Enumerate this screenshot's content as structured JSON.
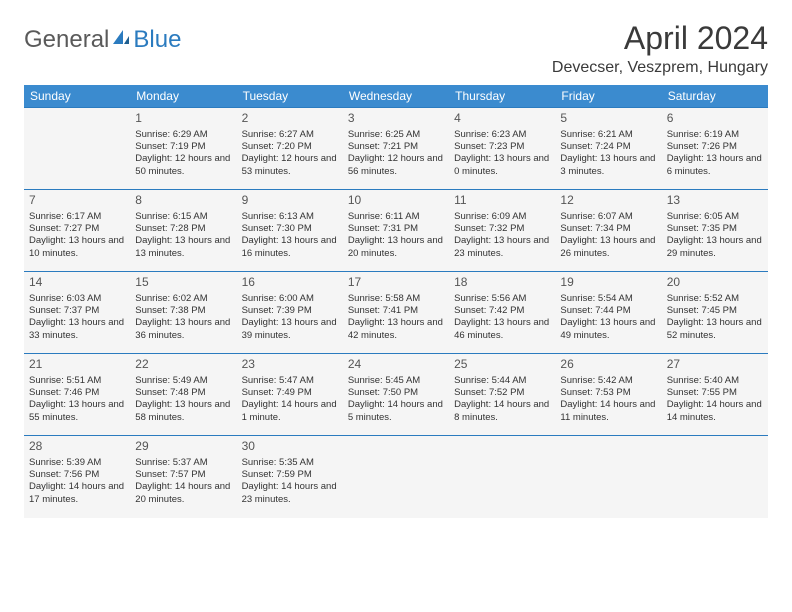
{
  "header": {
    "logo_general": "General",
    "logo_blue": "Blue",
    "month_title": "April 2024",
    "location": "Devecser, Veszprem, Hungary"
  },
  "colors": {
    "header_bg": "#3b8bcf",
    "header_text": "#ffffff",
    "cell_border": "#2b7bbf",
    "cell_bg": "#f5f5f5",
    "text": "#333333",
    "logo_gray": "#5a5a5a",
    "logo_blue": "#2b7bbf"
  },
  "weekdays": [
    "Sunday",
    "Monday",
    "Tuesday",
    "Wednesday",
    "Thursday",
    "Friday",
    "Saturday"
  ],
  "weeks": [
    [
      null,
      {
        "n": "1",
        "sr": "Sunrise: 6:29 AM",
        "ss": "Sunset: 7:19 PM",
        "dl": "Daylight: 12 hours and 50 minutes."
      },
      {
        "n": "2",
        "sr": "Sunrise: 6:27 AM",
        "ss": "Sunset: 7:20 PM",
        "dl": "Daylight: 12 hours and 53 minutes."
      },
      {
        "n": "3",
        "sr": "Sunrise: 6:25 AM",
        "ss": "Sunset: 7:21 PM",
        "dl": "Daylight: 12 hours and 56 minutes."
      },
      {
        "n": "4",
        "sr": "Sunrise: 6:23 AM",
        "ss": "Sunset: 7:23 PM",
        "dl": "Daylight: 13 hours and 0 minutes."
      },
      {
        "n": "5",
        "sr": "Sunrise: 6:21 AM",
        "ss": "Sunset: 7:24 PM",
        "dl": "Daylight: 13 hours and 3 minutes."
      },
      {
        "n": "6",
        "sr": "Sunrise: 6:19 AM",
        "ss": "Sunset: 7:26 PM",
        "dl": "Daylight: 13 hours and 6 minutes."
      }
    ],
    [
      {
        "n": "7",
        "sr": "Sunrise: 6:17 AM",
        "ss": "Sunset: 7:27 PM",
        "dl": "Daylight: 13 hours and 10 minutes."
      },
      {
        "n": "8",
        "sr": "Sunrise: 6:15 AM",
        "ss": "Sunset: 7:28 PM",
        "dl": "Daylight: 13 hours and 13 minutes."
      },
      {
        "n": "9",
        "sr": "Sunrise: 6:13 AM",
        "ss": "Sunset: 7:30 PM",
        "dl": "Daylight: 13 hours and 16 minutes."
      },
      {
        "n": "10",
        "sr": "Sunrise: 6:11 AM",
        "ss": "Sunset: 7:31 PM",
        "dl": "Daylight: 13 hours and 20 minutes."
      },
      {
        "n": "11",
        "sr": "Sunrise: 6:09 AM",
        "ss": "Sunset: 7:32 PM",
        "dl": "Daylight: 13 hours and 23 minutes."
      },
      {
        "n": "12",
        "sr": "Sunrise: 6:07 AM",
        "ss": "Sunset: 7:34 PM",
        "dl": "Daylight: 13 hours and 26 minutes."
      },
      {
        "n": "13",
        "sr": "Sunrise: 6:05 AM",
        "ss": "Sunset: 7:35 PM",
        "dl": "Daylight: 13 hours and 29 minutes."
      }
    ],
    [
      {
        "n": "14",
        "sr": "Sunrise: 6:03 AM",
        "ss": "Sunset: 7:37 PM",
        "dl": "Daylight: 13 hours and 33 minutes."
      },
      {
        "n": "15",
        "sr": "Sunrise: 6:02 AM",
        "ss": "Sunset: 7:38 PM",
        "dl": "Daylight: 13 hours and 36 minutes."
      },
      {
        "n": "16",
        "sr": "Sunrise: 6:00 AM",
        "ss": "Sunset: 7:39 PM",
        "dl": "Daylight: 13 hours and 39 minutes."
      },
      {
        "n": "17",
        "sr": "Sunrise: 5:58 AM",
        "ss": "Sunset: 7:41 PM",
        "dl": "Daylight: 13 hours and 42 minutes."
      },
      {
        "n": "18",
        "sr": "Sunrise: 5:56 AM",
        "ss": "Sunset: 7:42 PM",
        "dl": "Daylight: 13 hours and 46 minutes."
      },
      {
        "n": "19",
        "sr": "Sunrise: 5:54 AM",
        "ss": "Sunset: 7:44 PM",
        "dl": "Daylight: 13 hours and 49 minutes."
      },
      {
        "n": "20",
        "sr": "Sunrise: 5:52 AM",
        "ss": "Sunset: 7:45 PM",
        "dl": "Daylight: 13 hours and 52 minutes."
      }
    ],
    [
      {
        "n": "21",
        "sr": "Sunrise: 5:51 AM",
        "ss": "Sunset: 7:46 PM",
        "dl": "Daylight: 13 hours and 55 minutes."
      },
      {
        "n": "22",
        "sr": "Sunrise: 5:49 AM",
        "ss": "Sunset: 7:48 PM",
        "dl": "Daylight: 13 hours and 58 minutes."
      },
      {
        "n": "23",
        "sr": "Sunrise: 5:47 AM",
        "ss": "Sunset: 7:49 PM",
        "dl": "Daylight: 14 hours and 1 minute."
      },
      {
        "n": "24",
        "sr": "Sunrise: 5:45 AM",
        "ss": "Sunset: 7:50 PM",
        "dl": "Daylight: 14 hours and 5 minutes."
      },
      {
        "n": "25",
        "sr": "Sunrise: 5:44 AM",
        "ss": "Sunset: 7:52 PM",
        "dl": "Daylight: 14 hours and 8 minutes."
      },
      {
        "n": "26",
        "sr": "Sunrise: 5:42 AM",
        "ss": "Sunset: 7:53 PM",
        "dl": "Daylight: 14 hours and 11 minutes."
      },
      {
        "n": "27",
        "sr": "Sunrise: 5:40 AM",
        "ss": "Sunset: 7:55 PM",
        "dl": "Daylight: 14 hours and 14 minutes."
      }
    ],
    [
      {
        "n": "28",
        "sr": "Sunrise: 5:39 AM",
        "ss": "Sunset: 7:56 PM",
        "dl": "Daylight: 14 hours and 17 minutes."
      },
      {
        "n": "29",
        "sr": "Sunrise: 5:37 AM",
        "ss": "Sunset: 7:57 PM",
        "dl": "Daylight: 14 hours and 20 minutes."
      },
      {
        "n": "30",
        "sr": "Sunrise: 5:35 AM",
        "ss": "Sunset: 7:59 PM",
        "dl": "Daylight: 14 hours and 23 minutes."
      },
      null,
      null,
      null,
      null
    ]
  ]
}
